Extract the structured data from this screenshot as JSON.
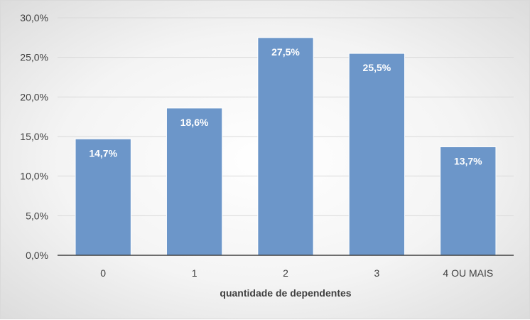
{
  "chart_data": {
    "type": "bar",
    "categories": [
      "0",
      "1",
      "2",
      "3",
      "4 OU MAIS"
    ],
    "values": [
      14.7,
      18.6,
      27.5,
      25.5,
      13.7
    ],
    "data_labels": [
      "14,7%",
      "18,6%",
      "27,5%",
      "25,5%",
      "13,7%"
    ],
    "title": "",
    "xlabel": "quantidade de dependentes",
    "ylabel": "",
    "ylim": [
      0,
      30
    ],
    "yticks": [
      0,
      5,
      10,
      15,
      20,
      25,
      30
    ],
    "ytick_labels": [
      "0,0%",
      "5,0%",
      "10,0%",
      "15,0%",
      "20,0%",
      "25,0%",
      "30,0%"
    ],
    "grid": true,
    "legend": "none",
    "colors": {
      "bar": "#6c96c9",
      "bar_border": "#ffffff",
      "grid": "#d9d9d9",
      "axis": "#404040"
    }
  }
}
